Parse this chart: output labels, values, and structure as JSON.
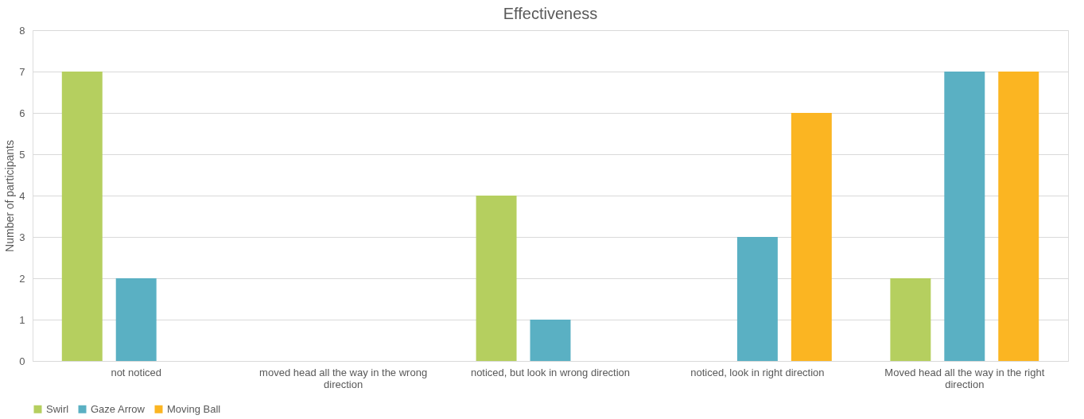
{
  "chart_data": {
    "type": "bar",
    "title": "Effectiveness",
    "ylabel": "Number of participants",
    "categories": [
      "not noticed",
      "moved head all the way in the wrong direction",
      "noticed, but look in wrong direction",
      "noticed, look in right direction",
      "Moved head all the way in the right direction"
    ],
    "series": [
      {
        "name": "Swirl",
        "color": "#b5cf5f",
        "values": [
          7,
          0,
          4,
          0,
          2
        ]
      },
      {
        "name": "Gaze Arrow",
        "color": "#5ab0c3",
        "values": [
          2,
          0,
          1,
          3,
          7
        ]
      },
      {
        "name": "Moving Ball",
        "color": "#fbb522",
        "values": [
          0,
          0,
          0,
          6,
          7
        ]
      }
    ],
    "ylim": [
      0,
      8
    ],
    "yticks": [
      0,
      1,
      2,
      3,
      4,
      5,
      6,
      7,
      8
    ],
    "grid": "y",
    "legend": "bottom"
  }
}
